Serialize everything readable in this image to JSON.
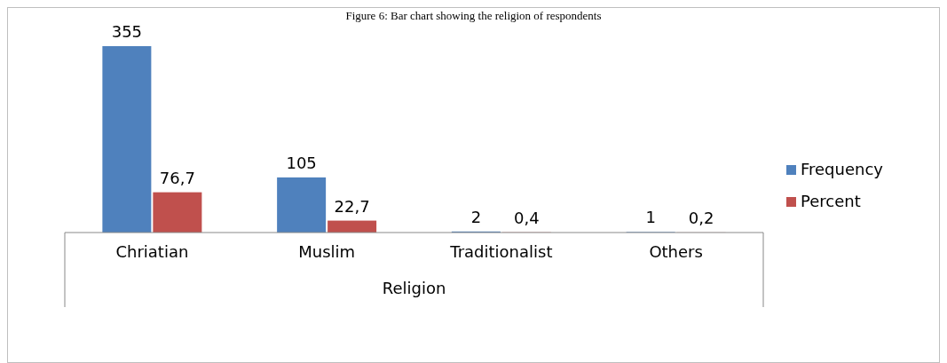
{
  "chart_data": {
    "type": "bar",
    "title": "Figure 6: Bar chart showing the religion of respondents",
    "xlabel": "Religion",
    "categories": [
      "Chriatian",
      "Muslim",
      "Traditionalist",
      "Others"
    ],
    "series": [
      {
        "name": "Frequency",
        "color": "#4f81bd",
        "values": [
          355,
          105,
          2,
          1
        ],
        "value_labels": [
          "355",
          "105",
          "2",
          "1"
        ]
      },
      {
        "name": "Percent",
        "color": "#c0504d",
        "values": [
          76.7,
          22.7,
          0.4,
          0.2
        ],
        "value_labels": [
          "76,7",
          "22,7",
          "0,4",
          "0,2"
        ]
      }
    ],
    "ylim": [
      0,
      355
    ],
    "tick_labels": "x",
    "legend": "right"
  }
}
